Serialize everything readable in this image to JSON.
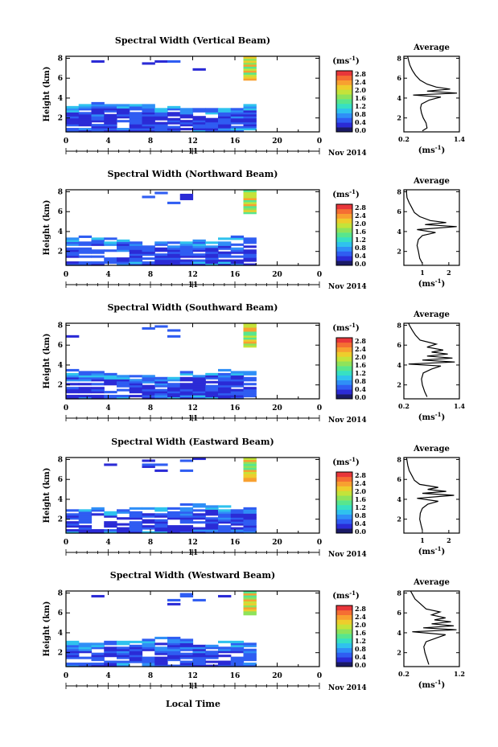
{
  "figure": {
    "xlabel": "Local Time",
    "day_label": "11",
    "date_label": "Nov 2014",
    "colorbar_unit": "(ms",
    "colorbar_unit_exp": "-1",
    "avg_title": "Average",
    "avg_xlabel": "(ms",
    "avg_xlabel_exp": "-1",
    "ylabel": "Height (km)"
  },
  "colorbar": {
    "ticks": [
      "2.8",
      "2.4",
      "2.0",
      "1.6",
      "1.2",
      "0.8",
      "0.4",
      "0.0"
    ],
    "colors": [
      "#1a1a66",
      "#2b2bd6",
      "#2f5df2",
      "#2f8ff7",
      "#2fc2ee",
      "#37e0c3",
      "#58e68d",
      "#8ee35b",
      "#c4e33a",
      "#eecd2c",
      "#f8a030",
      "#f56e33",
      "#e8363a"
    ]
  },
  "chart_data": [
    {
      "type": "heatmap",
      "title": "Spectral Width (Vertical Beam)",
      "x_ticks": [
        "0",
        "4",
        "8",
        "12",
        "16",
        "20",
        "0"
      ],
      "xlim": [
        0,
        24
      ],
      "y_ticks": [
        "2",
        "4",
        "6",
        "8"
      ],
      "ylim": [
        0.6,
        8.2
      ],
      "avg_x_ticks": [
        "0.2",
        "1.4"
      ],
      "avg_xlim": [
        0.2,
        1.4
      ],
      "avg_profile": [
        [
          0.6,
          0.7
        ],
        [
          0.7,
          1.0
        ],
        [
          0.68,
          1.5
        ],
        [
          0.62,
          2.0
        ],
        [
          0.58,
          2.5
        ],
        [
          0.56,
          3.0
        ],
        [
          0.58,
          3.4
        ],
        [
          0.75,
          3.8
        ],
        [
          1.0,
          4.1
        ],
        [
          0.4,
          4.3
        ],
        [
          1.35,
          4.5
        ],
        [
          0.7,
          4.7
        ],
        [
          1.2,
          4.9
        ],
        [
          0.9,
          5.1
        ],
        [
          0.7,
          5.4
        ],
        [
          0.55,
          5.8
        ],
        [
          0.45,
          6.3
        ],
        [
          0.38,
          6.8
        ],
        [
          0.33,
          7.3
        ],
        [
          0.3,
          7.8
        ],
        [
          0.28,
          8.2
        ]
      ]
    },
    {
      "type": "heatmap",
      "title": "Spectral Width (Northward Beam)",
      "x_ticks": [
        "0",
        "4",
        "8",
        "12",
        "16",
        "20",
        "0"
      ],
      "xlim": [
        0,
        24
      ],
      "y_ticks": [
        "2",
        "4",
        "6",
        "8"
      ],
      "ylim": [
        0.6,
        8.2
      ],
      "avg_x_ticks": [
        "1",
        "2"
      ],
      "avg_xlim": [
        0.3,
        2.4
      ],
      "avg_profile": [
        [
          1.0,
          0.8
        ],
        [
          0.9,
          1.3
        ],
        [
          0.85,
          2.0
        ],
        [
          0.8,
          2.6
        ],
        [
          0.85,
          3.2
        ],
        [
          1.0,
          3.6
        ],
        [
          1.5,
          3.9
        ],
        [
          0.8,
          4.2
        ],
        [
          2.3,
          4.5
        ],
        [
          1.1,
          4.7
        ],
        [
          1.9,
          4.9
        ],
        [
          1.3,
          5.1
        ],
        [
          0.9,
          5.5
        ],
        [
          0.7,
          5.9
        ],
        [
          0.6,
          6.4
        ],
        [
          0.5,
          6.9
        ],
        [
          0.42,
          7.4
        ],
        [
          0.4,
          7.9
        ],
        [
          0.4,
          8.2
        ]
      ]
    },
    {
      "type": "heatmap",
      "title": "Spectral Width (Southward Beam)",
      "x_ticks": [
        "0",
        "4",
        "8",
        "12",
        "16",
        "20",
        "0"
      ],
      "xlim": [
        0,
        24
      ],
      "y_ticks": [
        "2",
        "4",
        "6",
        "8"
      ],
      "ylim": [
        0.6,
        8.2
      ],
      "avg_x_ticks": [
        "0.2",
        "1.4"
      ],
      "avg_xlim": [
        0.2,
        1.4
      ],
      "avg_profile": [
        [
          0.7,
          0.8
        ],
        [
          0.65,
          1.3
        ],
        [
          0.6,
          2.0
        ],
        [
          0.58,
          2.6
        ],
        [
          0.62,
          3.2
        ],
        [
          0.8,
          3.6
        ],
        [
          1.0,
          3.9
        ],
        [
          0.3,
          4.1
        ],
        [
          1.3,
          4.3
        ],
        [
          0.6,
          4.5
        ],
        [
          1.25,
          4.7
        ],
        [
          0.7,
          4.9
        ],
        [
          1.15,
          5.1
        ],
        [
          0.8,
          5.3
        ],
        [
          1.05,
          5.5
        ],
        [
          0.7,
          5.8
        ],
        [
          0.9,
          6.1
        ],
        [
          0.55,
          6.5
        ],
        [
          0.45,
          7.0
        ],
        [
          0.38,
          7.5
        ],
        [
          0.32,
          8.0
        ],
        [
          0.3,
          8.2
        ]
      ]
    },
    {
      "type": "heatmap",
      "title": "Spectral Width (Eastward Beam)",
      "x_ticks": [
        "0",
        "4",
        "8",
        "12",
        "16",
        "20",
        "0"
      ],
      "xlim": [
        0,
        24
      ],
      "y_ticks": [
        "2",
        "4",
        "6",
        "8"
      ],
      "ylim": [
        0.6,
        8.2
      ],
      "avg_x_ticks": [
        "1",
        "2"
      ],
      "avg_xlim": [
        0.3,
        2.4
      ],
      "avg_profile": [
        [
          1.0,
          0.9
        ],
        [
          0.95,
          1.4
        ],
        [
          0.9,
          2.0
        ],
        [
          0.92,
          2.6
        ],
        [
          1.0,
          3.1
        ],
        [
          1.2,
          3.5
        ],
        [
          1.6,
          3.8
        ],
        [
          0.8,
          4.1
        ],
        [
          2.2,
          4.4
        ],
        [
          1.0,
          4.6
        ],
        [
          1.9,
          4.8
        ],
        [
          1.2,
          5.0
        ],
        [
          1.6,
          5.2
        ],
        [
          0.9,
          5.5
        ],
        [
          0.7,
          5.9
        ],
        [
          0.6,
          6.4
        ],
        [
          0.5,
          6.9
        ],
        [
          0.45,
          7.4
        ],
        [
          0.42,
          7.9
        ],
        [
          0.4,
          8.2
        ]
      ]
    },
    {
      "type": "heatmap",
      "title": "Spectral Width (Westward Beam)",
      "x_ticks": [
        "0",
        "4",
        "8",
        "12",
        "16",
        "20",
        "0"
      ],
      "xlim": [
        0,
        24
      ],
      "y_ticks": [
        "2",
        "4",
        "6",
        "8"
      ],
      "ylim": [
        0.6,
        8.2
      ],
      "avg_x_ticks": [
        "0.2",
        "1.2"
      ],
      "avg_xlim": [
        0.2,
        1.2
      ],
      "avg_profile": [
        [
          0.65,
          0.8
        ],
        [
          0.62,
          1.3
        ],
        [
          0.58,
          2.0
        ],
        [
          0.56,
          2.6
        ],
        [
          0.6,
          3.1
        ],
        [
          0.8,
          3.5
        ],
        [
          0.95,
          3.8
        ],
        [
          0.35,
          4.1
        ],
        [
          1.15,
          4.3
        ],
        [
          0.55,
          4.5
        ],
        [
          1.1,
          4.7
        ],
        [
          0.7,
          4.9
        ],
        [
          1.05,
          5.1
        ],
        [
          0.75,
          5.3
        ],
        [
          0.95,
          5.5
        ],
        [
          0.7,
          5.8
        ],
        [
          0.85,
          6.1
        ],
        [
          0.6,
          6.4
        ],
        [
          0.5,
          6.9
        ],
        [
          0.4,
          7.4
        ],
        [
          0.35,
          7.9
        ],
        [
          0.32,
          8.2
        ]
      ]
    }
  ]
}
